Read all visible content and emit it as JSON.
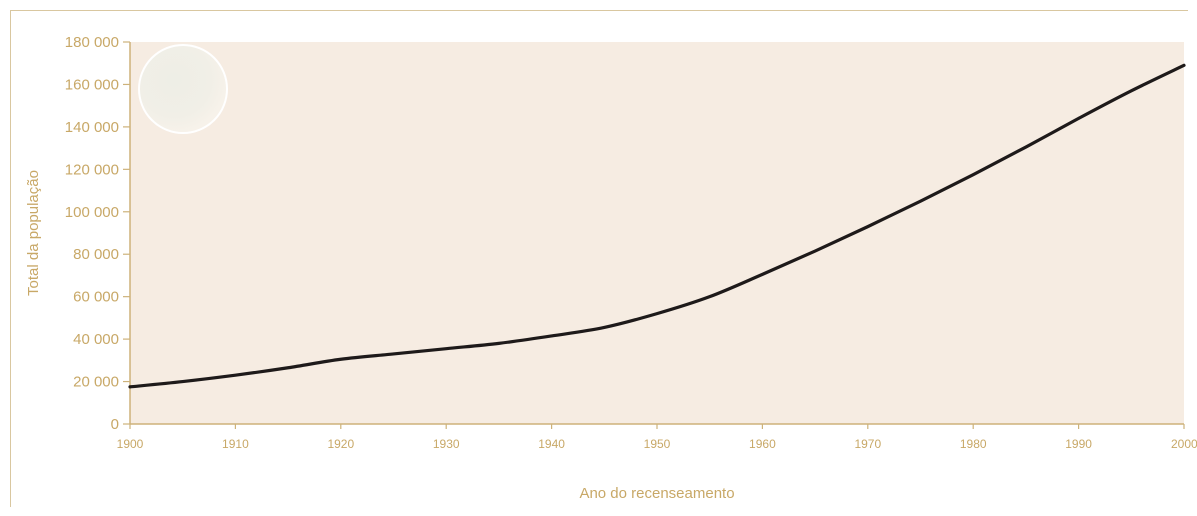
{
  "colors": {
    "plot_background": "#f6ece2",
    "axis": "#cdb27a",
    "text": "#c8a867",
    "line": "#1e1a1a"
  },
  "chart_data": {
    "type": "line",
    "title": "",
    "xlabel": "Ano do recenseamento",
    "ylabel": "Total da população",
    "xlim": [
      1900,
      2000
    ],
    "ylim": [
      0,
      180000
    ],
    "x_ticks": [
      "1900",
      "1910",
      "1920",
      "1930",
      "1940",
      "1950",
      "1960",
      "1970",
      "1980",
      "1990",
      "2000"
    ],
    "y_ticks": [
      "0",
      "20 000",
      "40 000",
      "60 000",
      "80 000",
      "100 000",
      "120 000",
      "140 000",
      "160 000",
      "180 000"
    ],
    "grid": false,
    "series": [
      {
        "x": [
          1900,
          1905,
          1910,
          1915,
          1920,
          1925,
          1930,
          1935,
          1940,
          1945,
          1950,
          1955,
          1960,
          1965,
          1970,
          1975,
          1980,
          1985,
          1990,
          1995,
          2000
        ],
        "y": [
          17500,
          20000,
          23000,
          26500,
          30500,
          33000,
          35500,
          38000,
          41500,
          45500,
          52000,
          60000,
          70500,
          81500,
          93000,
          105000,
          117500,
          130500,
          144000,
          157000,
          169000
        ]
      }
    ]
  }
}
